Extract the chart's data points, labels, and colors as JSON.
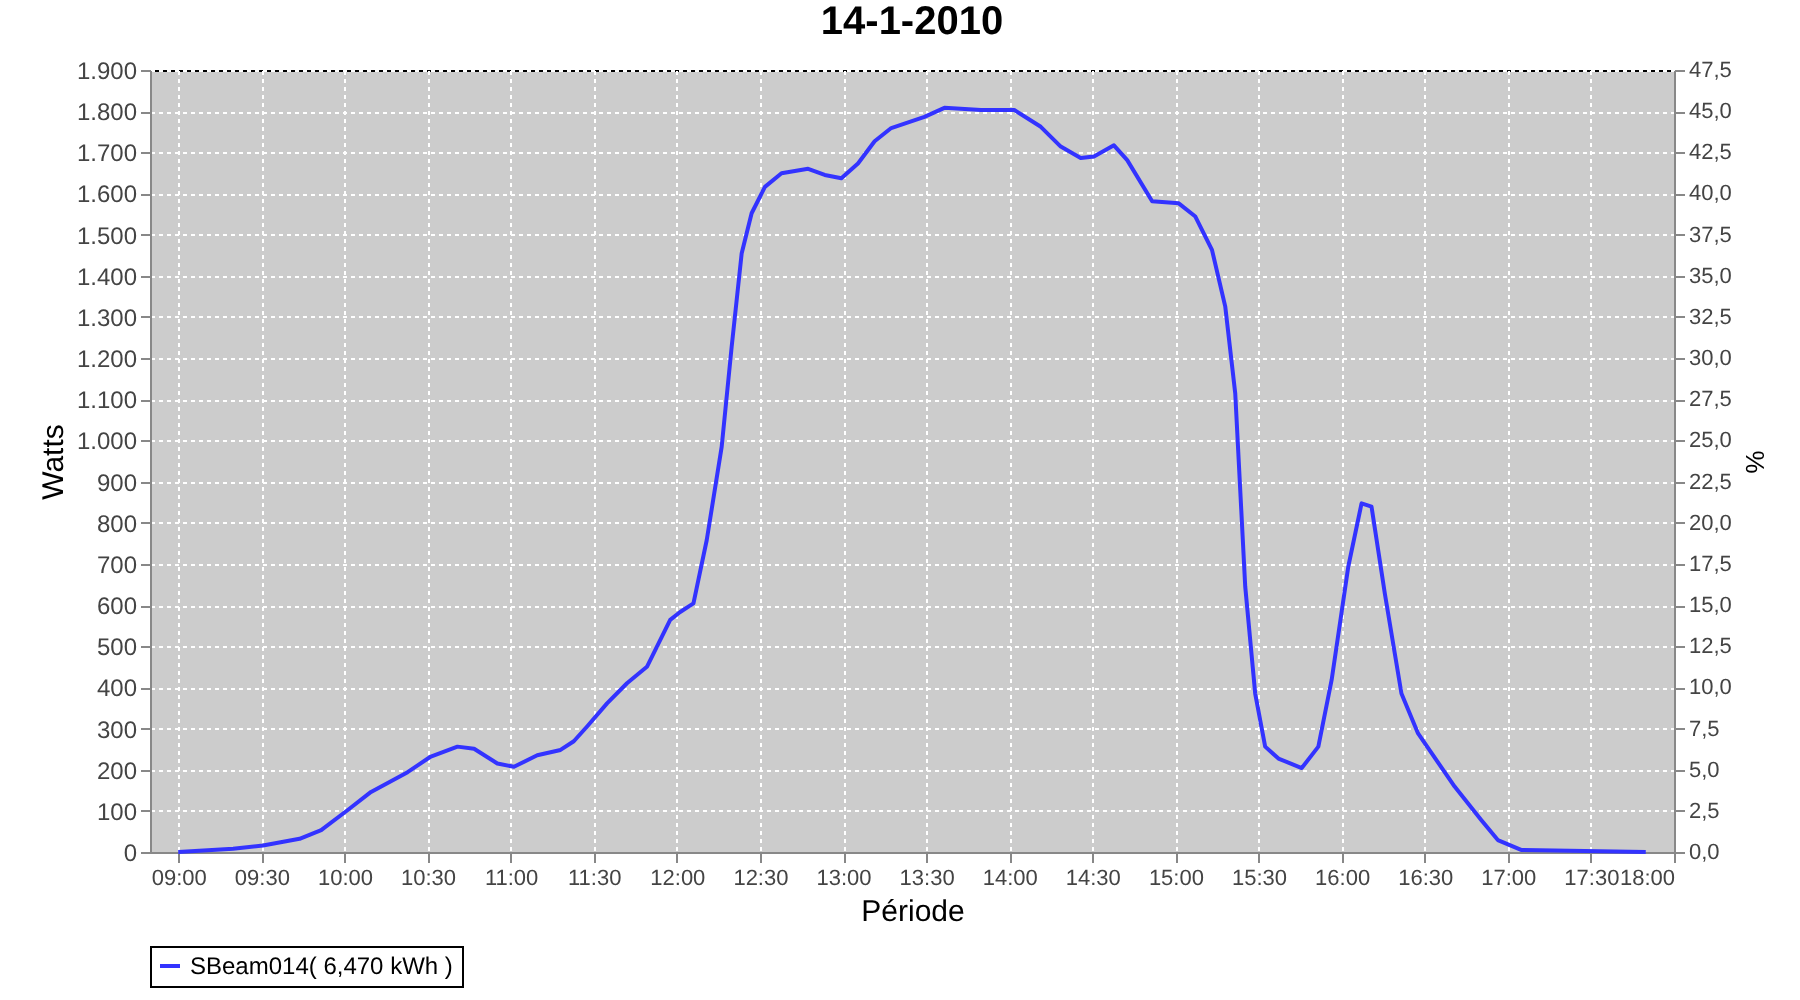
{
  "chart_data": {
    "type": "line",
    "title": "14-1-2010",
    "xlabel": "Période",
    "ylabel": "Watts",
    "y2label": "%",
    "x": [
      9.0,
      9.33,
      9.51,
      9.73,
      9.86,
      10.02,
      10.16,
      10.38,
      10.52,
      10.68,
      10.78,
      10.92,
      11.02,
      11.16,
      11.3,
      11.38,
      11.46,
      11.58,
      11.7,
      11.82,
      11.96,
      12.02,
      12.1,
      12.18,
      12.27,
      12.33,
      12.39,
      12.45,
      12.53,
      12.63,
      12.79,
      12.89,
      12.99,
      13.09,
      13.19,
      13.29,
      13.49,
      13.61,
      13.83,
      14.03,
      14.19,
      14.31,
      14.43,
      14.51,
      14.63,
      14.71,
      14.86,
      15.02,
      15.12,
      15.22,
      15.3,
      15.36,
      15.42,
      15.48,
      15.54,
      15.62,
      15.76,
      15.86,
      15.94,
      16.04,
      16.12,
      16.18,
      16.26,
      16.36,
      16.46,
      16.68,
      16.84,
      16.94,
      17.08,
      17.83
    ],
    "series": [
      {
        "name": "SBeam014( 6,470 kWh )",
        "color": "#3333ff",
        "values": [
          0,
          8,
          16,
          32,
          53,
          102,
          146,
          194,
          232,
          256,
          251,
          215,
          207,
          235,
          248,
          269,
          305,
          361,
          410,
          450,
          564,
          583,
          604,
          758,
          985,
          1228,
          1454,
          1552,
          1616,
          1649,
          1660,
          1645,
          1637,
          1673,
          1727,
          1759,
          1786,
          1808,
          1803,
          1803,
          1762,
          1714,
          1686,
          1690,
          1717,
          1681,
          1581,
          1576,
          1544,
          1463,
          1325,
          1114,
          645,
          385,
          256,
          227,
          204,
          256,
          418,
          693,
          847,
          839,
          628,
          385,
          288,
          159,
          78,
          29,
          5,
          0
        ]
      }
    ],
    "xlim": [
      8.83,
      18.0
    ],
    "xticks": [
      {
        "value": 9,
        "label": "09:00"
      },
      {
        "value": 9.5,
        "label": "09:30"
      },
      {
        "value": 10,
        "label": "10:00"
      },
      {
        "value": 10.5,
        "label": "10:30"
      },
      {
        "value": 11,
        "label": "11:00"
      },
      {
        "value": 11.5,
        "label": "11:30"
      },
      {
        "value": 12,
        "label": "12:00"
      },
      {
        "value": 12.5,
        "label": "12:30"
      },
      {
        "value": 13,
        "label": "13:00"
      },
      {
        "value": 13.5,
        "label": "13:30"
      },
      {
        "value": 14,
        "label": "14:00"
      },
      {
        "value": 14.5,
        "label": "14:30"
      },
      {
        "value": 15,
        "label": "15:00"
      },
      {
        "value": 15.5,
        "label": "15:30"
      },
      {
        "value": 16,
        "label": "16:00"
      },
      {
        "value": 16.5,
        "label": "16:30"
      },
      {
        "value": 17,
        "label": "17:00"
      },
      {
        "value": 17.5,
        "label": "17:30"
      },
      {
        "value": 18,
        "label": "18:00"
      }
    ],
    "ylim": [
      0,
      1900
    ],
    "yticks": [
      0,
      100,
      200,
      300,
      400,
      500,
      600,
      700,
      800,
      900,
      {
        "value": 1000,
        "label": "1.000"
      },
      {
        "value": 1100,
        "label": "1.100"
      },
      {
        "value": 1200,
        "label": "1.200"
      },
      {
        "value": 1300,
        "label": "1.300"
      },
      {
        "value": 1400,
        "label": "1.400"
      },
      {
        "value": 1500,
        "label": "1.500"
      },
      {
        "value": 1600,
        "label": "1.600"
      },
      {
        "value": 1700,
        "label": "1.700"
      },
      {
        "value": 1800,
        "label": "1.800"
      },
      {
        "value": 1900,
        "label": "1.900"
      }
    ],
    "y2lim": [
      0,
      47.5
    ],
    "y2ticks": [
      {
        "value": 0,
        "label": "0,0"
      },
      {
        "value": 2.5,
        "label": "2,5"
      },
      {
        "value": 5,
        "label": "5,0"
      },
      {
        "value": 7.5,
        "label": "7,5"
      },
      {
        "value": 10,
        "label": "10,0"
      },
      {
        "value": 12.5,
        "label": "12,5"
      },
      {
        "value": 15,
        "label": "15,0"
      },
      {
        "value": 17.5,
        "label": "17,5"
      },
      {
        "value": 20,
        "label": "20,0"
      },
      {
        "value": 22.5,
        "label": "22,5"
      },
      {
        "value": 25,
        "label": "25,0"
      },
      {
        "value": 27.5,
        "label": "27,5"
      },
      {
        "value": 30,
        "label": "30,0"
      },
      {
        "value": 32.5,
        "label": "32,5"
      },
      {
        "value": 35,
        "label": "35,0"
      },
      {
        "value": 37.5,
        "label": "37,5"
      },
      {
        "value": 40,
        "label": "40,0"
      },
      {
        "value": 42.5,
        "label": "42,5"
      },
      {
        "value": 45,
        "label": "45,0"
      },
      {
        "value": 47.5,
        "label": "47,5"
      }
    ],
    "grid": true,
    "legend": "bottom",
    "marker": "none",
    "line_style": "solid"
  }
}
